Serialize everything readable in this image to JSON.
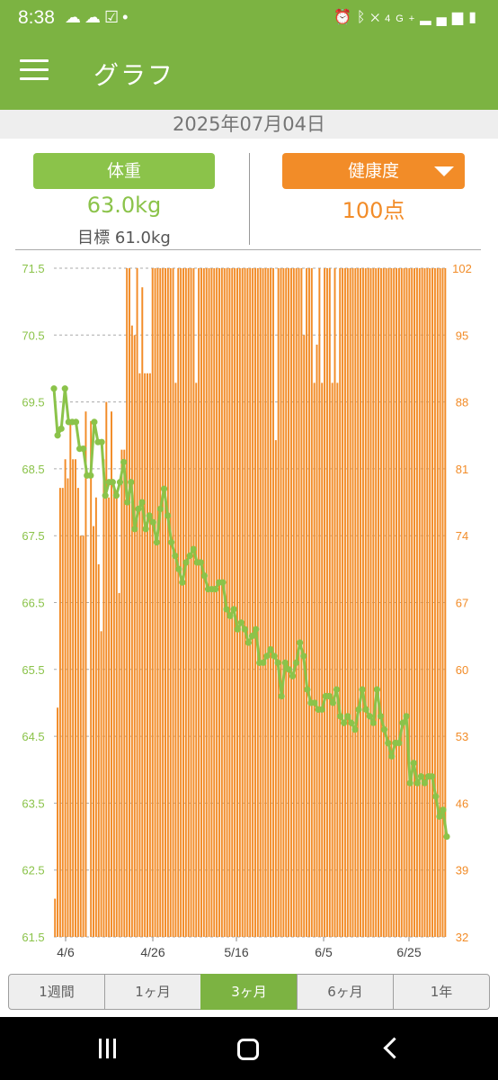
{
  "status_bar": {
    "time": "8:38",
    "left_icons": [
      "cloud-icon",
      "weather-icon",
      "check-box-icon",
      "dot-icon"
    ],
    "right_icons": [
      "alarm-icon",
      "bluetooth-icon",
      "mute-icon",
      "4g-icon",
      "signal-icon",
      "battery-icon"
    ],
    "network": "4G+"
  },
  "app_bar": {
    "title": "グラフ"
  },
  "date": "2025年07月04日",
  "weight": {
    "button_label": "体重",
    "value": "63.0kg",
    "goal": "目標 61.0kg"
  },
  "health": {
    "button_label": "健康度",
    "value": "100点"
  },
  "tabs": [
    {
      "label": "1週間",
      "active": false
    },
    {
      "label": "1ヶ月",
      "active": false
    },
    {
      "label": "3ヶ月",
      "active": true
    },
    {
      "label": "6ヶ月",
      "active": false
    },
    {
      "label": "1年",
      "active": false
    }
  ],
  "colors": {
    "green": "#8bc34a",
    "orange": "#f28c28",
    "appbar": "#7cb342"
  },
  "chart_data": {
    "type": "bar+line",
    "x_tick_labels": [
      "4/6",
      "4/26",
      "5/16",
      "6/5",
      "6/25"
    ],
    "y_left_ticks": [
      "71.5",
      "70.5",
      "69.5",
      "68.5",
      "67.5",
      "66.5",
      "65.5",
      "64.5",
      "63.5",
      "62.5",
      "61.5"
    ],
    "y_right_ticks": [
      "102",
      "95",
      "88",
      "81",
      "74",
      "67",
      "60",
      "53",
      "46",
      "39",
      "32"
    ],
    "ylim_left": [
      61.5,
      71.5
    ],
    "ylim_right": [
      32,
      102
    ],
    "grid": "dashed horizontal",
    "bar_series": {
      "name": "健康度",
      "values": [
        36,
        56,
        79,
        79,
        82,
        80,
        86,
        82,
        82,
        79,
        74,
        74,
        87,
        27,
        86,
        75,
        78,
        71,
        64,
        82,
        88,
        78,
        87,
        79,
        78,
        68,
        83,
        83,
        102,
        102,
        96,
        95,
        102,
        91,
        100,
        91,
        91,
        91,
        102,
        102,
        102,
        102,
        102,
        102,
        102,
        102,
        102,
        90,
        102,
        102,
        102,
        102,
        102,
        102,
        102,
        90,
        102,
        102,
        102,
        102,
        102,
        102,
        102,
        102,
        102,
        102,
        102,
        102,
        102,
        102,
        102,
        102,
        102,
        102,
        102,
        102,
        102,
        102,
        102,
        102,
        102,
        102,
        102,
        102,
        102,
        102,
        84,
        102,
        102,
        102,
        102,
        102,
        102,
        102,
        102,
        102,
        102,
        95,
        102,
        102,
        102,
        90,
        94,
        102,
        90,
        102,
        102,
        102,
        90,
        102,
        90,
        102,
        102,
        102,
        102,
        102,
        102,
        102,
        102,
        102,
        102,
        102,
        102,
        102,
        102,
        102,
        102,
        102,
        102,
        102,
        102,
        102,
        102,
        102,
        102,
        102,
        102,
        102,
        102,
        102,
        102,
        102,
        102,
        102,
        102,
        102,
        102,
        102,
        102,
        102,
        102,
        102,
        102
      ]
    },
    "line_series": {
      "name": "体重",
      "points": [
        [
          0,
          69.7
        ],
        [
          1,
          69.0
        ],
        [
          2,
          69.1
        ],
        [
          3,
          69.7
        ],
        [
          4,
          69.2
        ],
        [
          5,
          69.2
        ],
        [
          6,
          69.2
        ],
        [
          7,
          68.8
        ],
        [
          8,
          68.8
        ],
        [
          9,
          68.4
        ],
        [
          10,
          68.4
        ],
        [
          11,
          69.2
        ],
        [
          12,
          68.9
        ],
        [
          13,
          68.9
        ],
        [
          14,
          68.1
        ],
        [
          15,
          68.3
        ],
        [
          16,
          68.3
        ],
        [
          17,
          68.1
        ],
        [
          18,
          68.3
        ],
        [
          19,
          68.6
        ],
        [
          20,
          68.0
        ],
        [
          21,
          68.3
        ],
        [
          22,
          67.6
        ],
        [
          23,
          67.9
        ],
        [
          24,
          68.0
        ],
        [
          25,
          67.6
        ],
        [
          26,
          67.8
        ],
        [
          27,
          67.7
        ],
        [
          28,
          67.4
        ],
        [
          29,
          67.9
        ],
        [
          30,
          68.2
        ],
        [
          31,
          67.8
        ],
        [
          32,
          67.4
        ],
        [
          33,
          67.2
        ],
        [
          34,
          67.0
        ],
        [
          35,
          66.8
        ],
        [
          36,
          67.1
        ],
        [
          37,
          67.2
        ],
        [
          38,
          67.3
        ],
        [
          39,
          67.1
        ],
        [
          40,
          67.1
        ],
        [
          41,
          66.9
        ],
        [
          42,
          66.7
        ],
        [
          43,
          66.7
        ],
        [
          44,
          66.7
        ],
        [
          45,
          66.8
        ],
        [
          46,
          66.8
        ],
        [
          47,
          66.4
        ],
        [
          48,
          66.3
        ],
        [
          49,
          66.4
        ],
        [
          50,
          66.1
        ],
        [
          51,
          66.2
        ],
        [
          52,
          66.1
        ],
        [
          53,
          65.9
        ],
        [
          54,
          66.0
        ],
        [
          55,
          66.1
        ],
        [
          56,
          65.6
        ],
        [
          57,
          65.6
        ],
        [
          58,
          65.7
        ],
        [
          59,
          65.8
        ],
        [
          60,
          65.7
        ],
        [
          61,
          65.6
        ],
        [
          62,
          65.1
        ],
        [
          63,
          65.6
        ],
        [
          64,
          65.5
        ],
        [
          65,
          65.4
        ],
        [
          66,
          65.6
        ],
        [
          67,
          65.9
        ],
        [
          68,
          65.7
        ],
        [
          69,
          65.2
        ],
        [
          70,
          65.0
        ],
        [
          71,
          65.0
        ],
        [
          72,
          64.9
        ],
        [
          73,
          64.9
        ],
        [
          74,
          65.1
        ],
        [
          75,
          65.1
        ],
        [
          76,
          65.0
        ],
        [
          77,
          65.2
        ],
        [
          78,
          64.8
        ],
        [
          79,
          64.7
        ],
        [
          80,
          64.8
        ],
        [
          81,
          64.7
        ],
        [
          82,
          64.6
        ],
        [
          83,
          64.9
        ],
        [
          84,
          65.2
        ],
        [
          85,
          64.9
        ],
        [
          86,
          64.8
        ],
        [
          87,
          64.7
        ],
        [
          88,
          65.2
        ],
        [
          89,
          64.8
        ],
        [
          90,
          64.6
        ],
        [
          91,
          64.4
        ],
        [
          92,
          64.2
        ],
        [
          93,
          64.4
        ],
        [
          94,
          64.4
        ],
        [
          95,
          64.7
        ],
        [
          96,
          64.8
        ],
        [
          97,
          63.8
        ],
        [
          98,
          64.1
        ],
        [
          99,
          63.8
        ],
        [
          100,
          63.9
        ],
        [
          101,
          63.8
        ],
        [
          102,
          63.9
        ],
        [
          103,
          63.9
        ],
        [
          104,
          63.6
        ],
        [
          105,
          63.3
        ],
        [
          106,
          63.4
        ],
        [
          107,
          63.0
        ]
      ]
    }
  }
}
